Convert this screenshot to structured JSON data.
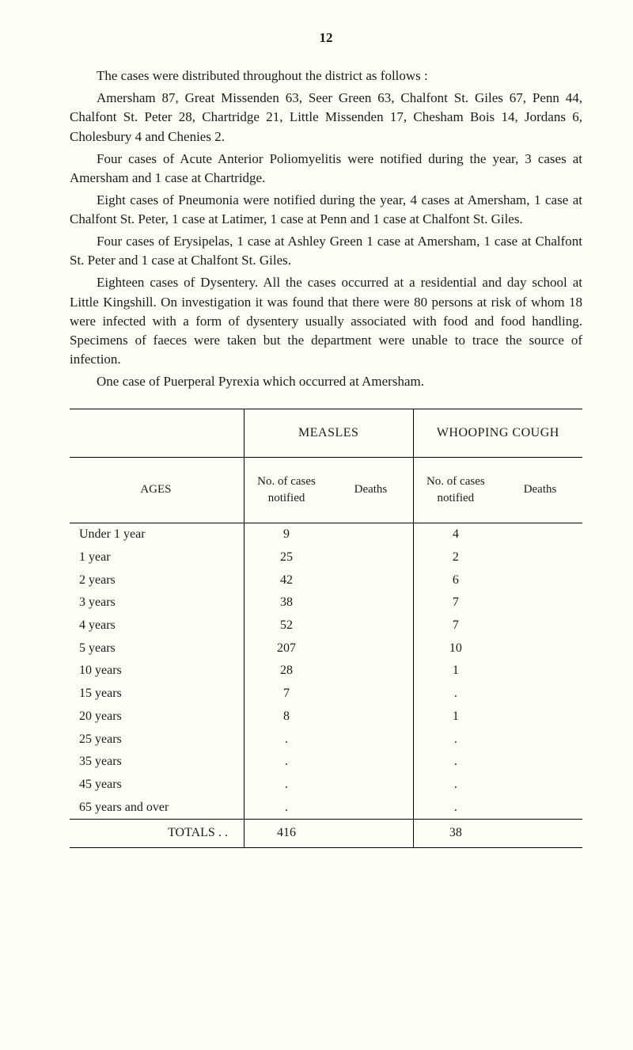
{
  "page_number": "12",
  "paragraphs": [
    "The cases were distributed throughout the district as follows :",
    "Amersham 87, Great Missenden 63, Seer Green 63, Chalfont St. Giles 67, Penn 44, Chalfont St. Peter 28, Chartridge 21, Little Missenden 17, Chesham Bois 14, Jordans 6, Cholesbury 4 and Chenies 2.",
    "Four cases of Acute Anterior Poliomyelitis were notified during the year, 3 cases at Amersham and 1 case at Chartridge.",
    "Eight cases of Pneumonia were notified during the year, 4 cases at Amersham, 1 case at Chalfont St. Peter, 1 case at Latimer, 1 case at Penn and 1 case at Chalfont St. Giles.",
    "Four cases of Erysipelas, 1 case at Ashley Green 1 case at Amersham, 1 case at Chalfont St. Peter and 1 case at Chalfont St. Giles.",
    "Eighteen cases of Dysentery. All the cases occurred at a residential and day school at Little Kingshill. On investigation it was found that there were 80 persons at risk of whom 18 were infected with a form of dysentery usually associated with food and food handling. Specimens of faeces were taken but the department were unable to trace the source of infection.",
    "One case of Puerperal Pyrexia which occurred at Amersham."
  ],
  "table": {
    "top_headers": {
      "ages": "",
      "measles": "MEASLES",
      "whooping": "WHOOPING COUGH"
    },
    "sub_headers": {
      "ages": "AGES",
      "cases": "No. of cases notified",
      "deaths": "Deaths"
    },
    "rows": [
      {
        "age": "Under 1 year",
        "m_cases": "9",
        "m_deaths": "",
        "w_cases": "4",
        "w_deaths": ""
      },
      {
        "age": "1 year",
        "m_cases": "25",
        "m_deaths": "",
        "w_cases": "2",
        "w_deaths": ""
      },
      {
        "age": "2 years",
        "m_cases": "42",
        "m_deaths": "",
        "w_cases": "6",
        "w_deaths": ""
      },
      {
        "age": "3 years",
        "m_cases": "38",
        "m_deaths": "",
        "w_cases": "7",
        "w_deaths": ""
      },
      {
        "age": "4 years",
        "m_cases": "52",
        "m_deaths": "",
        "w_cases": "7",
        "w_deaths": ""
      },
      {
        "age": "5 years",
        "m_cases": "207",
        "m_deaths": "",
        "w_cases": "10",
        "w_deaths": ""
      },
      {
        "age": "10 years",
        "m_cases": "28",
        "m_deaths": "",
        "w_cases": "1",
        "w_deaths": ""
      },
      {
        "age": "15 years",
        "m_cases": "7",
        "m_deaths": "",
        "w_cases": ".",
        "w_deaths": ""
      },
      {
        "age": "20 years",
        "m_cases": "8",
        "m_deaths": "",
        "w_cases": "1",
        "w_deaths": ""
      },
      {
        "age": "25 years",
        "m_cases": ".",
        "m_deaths": "",
        "w_cases": ".",
        "w_deaths": ""
      },
      {
        "age": "35 years",
        "m_cases": ".",
        "m_deaths": "",
        "w_cases": ".",
        "w_deaths": ""
      },
      {
        "age": "45 years",
        "m_cases": ".",
        "m_deaths": "",
        "w_cases": ".",
        "w_deaths": ""
      },
      {
        "age": "65 years and over",
        "m_cases": ".",
        "m_deaths": "",
        "w_cases": ".",
        "w_deaths": ""
      }
    ],
    "totals": {
      "label": "TOTALS  . .",
      "m_cases": "416",
      "m_deaths": "",
      "w_cases": "38",
      "w_deaths": ""
    }
  }
}
